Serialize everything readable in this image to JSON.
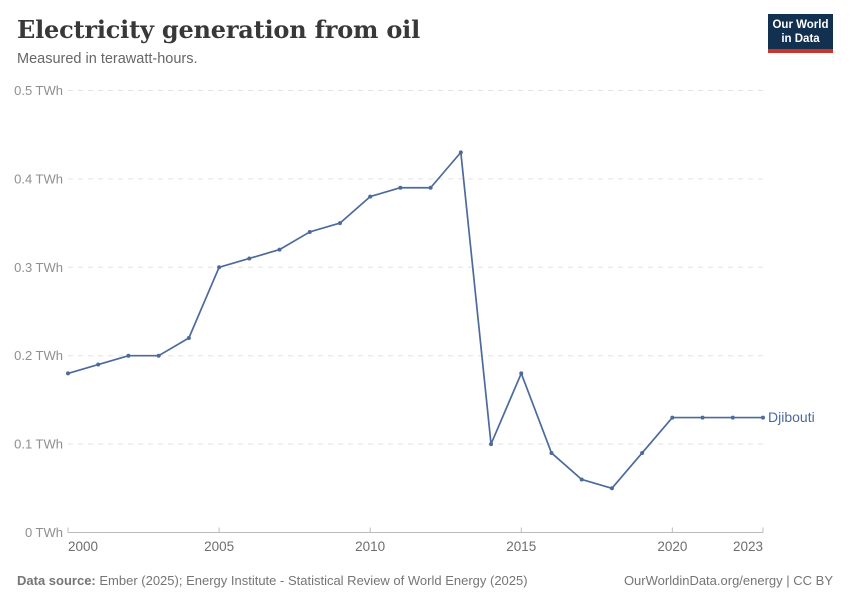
{
  "header": {
    "title": "Electricity generation from oil",
    "subtitle": "Measured in terawatt-hours.",
    "logo": {
      "line1": "Our World",
      "line2": "in Data"
    }
  },
  "chart_data": {
    "type": "line",
    "title": "Electricity generation from oil",
    "subtitle": "Measured in terawatt-hours.",
    "unit": "TWh",
    "x": [
      2000,
      2001,
      2002,
      2003,
      2004,
      2005,
      2006,
      2007,
      2008,
      2009,
      2010,
      2011,
      2012,
      2013,
      2014,
      2015,
      2016,
      2017,
      2018,
      2019,
      2020,
      2021,
      2022,
      2023
    ],
    "series": [
      {
        "name": "Djibouti",
        "color": "#4C6A9C",
        "values": [
          0.18,
          0.19,
          0.2,
          0.2,
          0.22,
          0.3,
          0.31,
          0.32,
          0.34,
          0.35,
          0.38,
          0.39,
          0.39,
          0.43,
          0.1,
          0.18,
          0.09,
          0.06,
          0.05,
          0.09,
          0.13,
          0.13,
          0.13,
          0.13
        ]
      }
    ],
    "ylim": [
      0,
      0.5
    ],
    "yticks": [
      {
        "value": 0,
        "label": "0 TWh"
      },
      {
        "value": 0.1,
        "label": "0.1 TWh"
      },
      {
        "value": 0.2,
        "label": "0.2 TWh"
      },
      {
        "value": 0.3,
        "label": "0.3 TWh"
      },
      {
        "value": 0.4,
        "label": "0.4 TWh"
      },
      {
        "value": 0.5,
        "label": "0.5 TWh"
      }
    ],
    "xticks": [
      2000,
      2005,
      2010,
      2015,
      2020,
      2023
    ],
    "grid": "horizontal-dashed",
    "legend_position": "end-of-line",
    "style": {
      "line_color": "#4C6A9C",
      "grid_color": "#E3E3E3",
      "axis_color": "#BCBCBC",
      "ytick_color": "#8F8F8F",
      "xtick_color": "#6E6E6E"
    }
  },
  "footer": {
    "source_label": "Data source:",
    "source_text": " Ember (2025); Energy Institute - Statistical Review of World Energy (2025)",
    "rights": "OurWorldinData.org/energy | CC BY"
  },
  "brand": {
    "logo_bg": "#12304F",
    "logo_red": "#CB342B"
  }
}
